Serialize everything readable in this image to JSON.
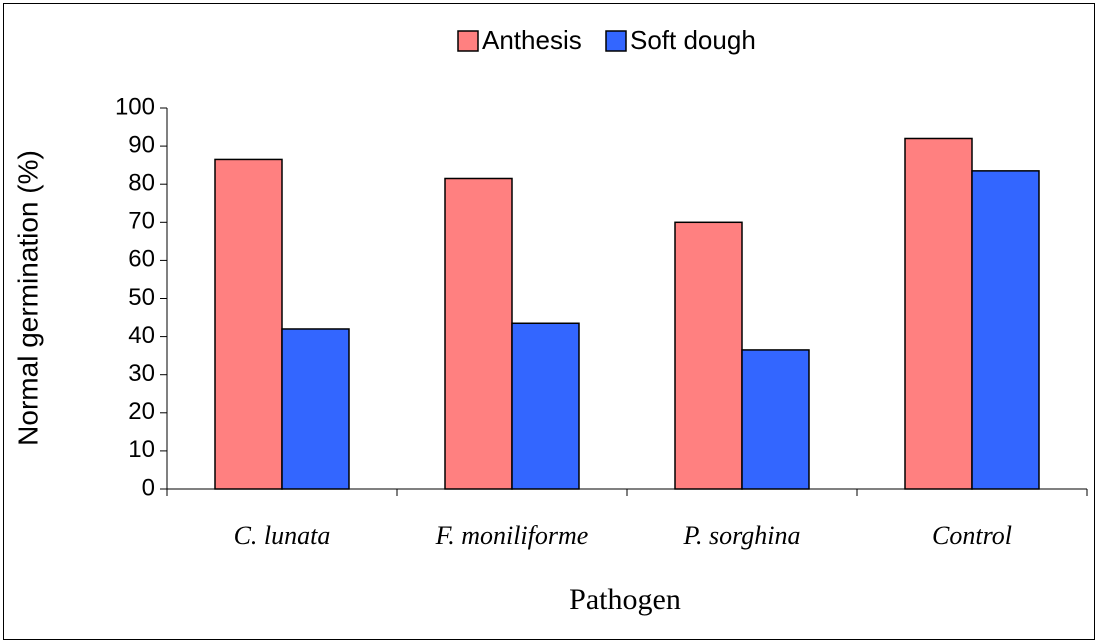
{
  "chart_data": {
    "type": "bar",
    "categories": [
      "C. lunata",
      "F. moniliforme",
      "P. sorghina",
      "Control"
    ],
    "series": [
      {
        "name": "Anthesis",
        "color": "#ff8080",
        "values": [
          86.5,
          81.5,
          70,
          92
        ]
      },
      {
        "name": "Soft dough",
        "color": "#3366ff",
        "values": [
          42,
          43.5,
          36.5,
          83.5
        ]
      }
    ],
    "ylabel": "Normal germination  (%)",
    "xlabel": "Pathogen",
    "ylim": [
      0,
      100
    ],
    "yticks": [
      0,
      10,
      20,
      30,
      40,
      50,
      60,
      70,
      80,
      90,
      100
    ],
    "legend": "top"
  }
}
